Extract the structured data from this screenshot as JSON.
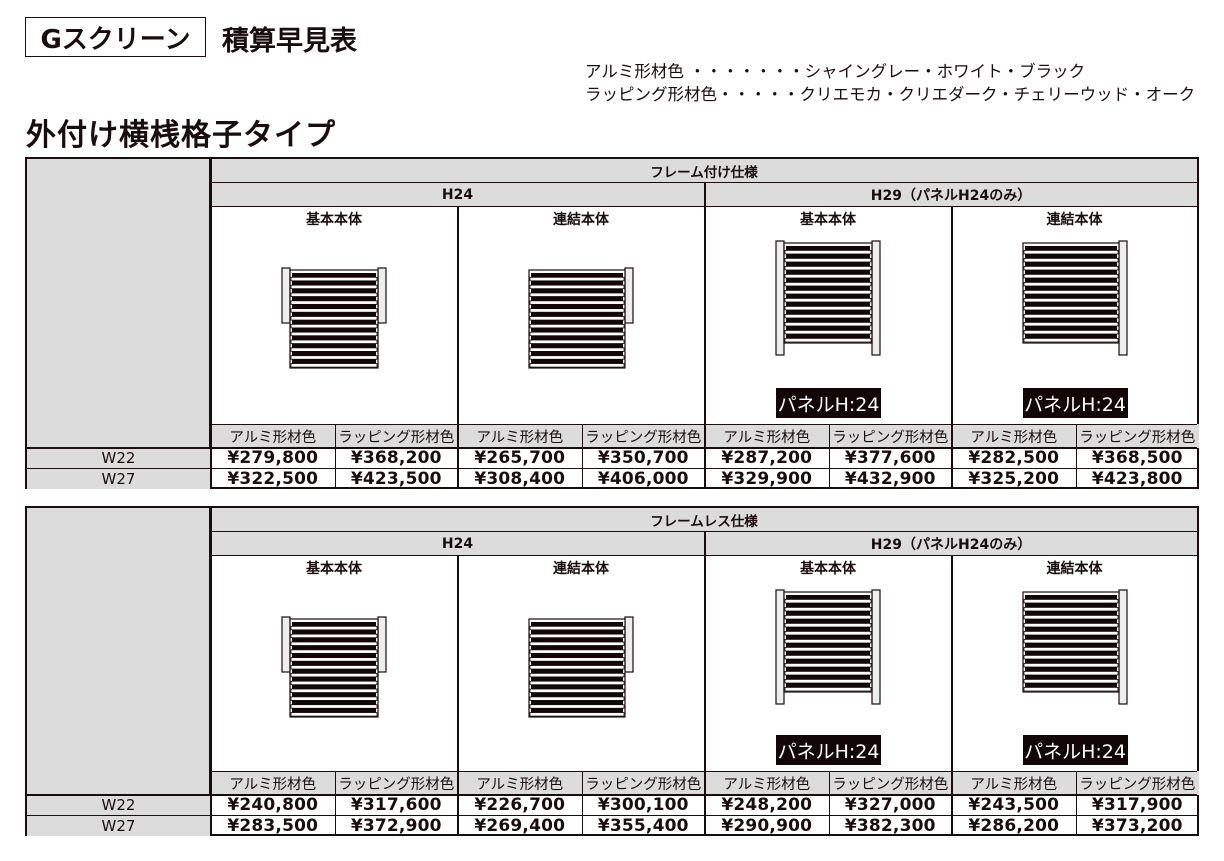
{
  "header": {
    "brand": "Gスクリーン",
    "title": "積算早見表"
  },
  "legend": {
    "alumi": "アルミ形材色 ・・・・・・・シャイングレー・ホワイト・ブラック",
    "wrapping": "ラッピング形材色・・・・・クリエモカ・クリエダーク・チェリーウッド・オーク"
  },
  "section_title": "外付け横桟格子タイプ",
  "colors": {
    "header_gray": "#dcdcdc",
    "line": "#1a0d0d",
    "badge_bg": "#120606"
  },
  "tables": [
    {
      "spec": "フレーム付け仕様",
      "groups": [
        {
          "label": "H24",
          "blocks": [
            {
              "name": "基本本体"
            },
            {
              "name": "連結本体"
            }
          ]
        },
        {
          "label": "H29（パネルH24のみ）",
          "blocks": [
            {
              "name": "基本本体",
              "badge": "パネルH:24"
            },
            {
              "name": "連結本体",
              "badge": "パネルH:24"
            }
          ]
        }
      ],
      "color_headers": [
        "アルミ形材色",
        "ラッピング形材色",
        "アルミ形材色",
        "ラッピング形材色",
        "アルミ形材色",
        "ラッピング形材色",
        "アルミ形材色",
        "ラッピング形材色"
      ],
      "rows": [
        {
          "label": "W22",
          "prices": [
            "¥279,800",
            "¥368,200",
            "¥265,700",
            "¥350,700",
            "¥287,200",
            "¥377,600",
            "¥282,500",
            "¥368,500"
          ]
        },
        {
          "label": "W27",
          "prices": [
            "¥322,500",
            "¥423,500",
            "¥308,400",
            "¥406,000",
            "¥329,900",
            "¥432,900",
            "¥325,200",
            "¥423,800"
          ]
        }
      ]
    },
    {
      "spec": "フレームレス仕様",
      "groups": [
        {
          "label": "H24",
          "blocks": [
            {
              "name": "基本本体"
            },
            {
              "name": "連結本体"
            }
          ]
        },
        {
          "label": "H29（パネルH24のみ）",
          "blocks": [
            {
              "name": "基本本体",
              "badge": "パネルH:24"
            },
            {
              "name": "連結本体",
              "badge": "パネルH:24"
            }
          ]
        }
      ],
      "color_headers": [
        "アルミ形材色",
        "ラッピング形材色",
        "アルミ形材色",
        "ラッピング形材色",
        "アルミ形材色",
        "ラッピング形材色",
        "アルミ形材色",
        "ラッピング形材色"
      ],
      "rows": [
        {
          "label": "W22",
          "prices": [
            "¥240,800",
            "¥317,600",
            "¥226,700",
            "¥300,100",
            "¥248,200",
            "¥327,000",
            "¥243,500",
            "¥317,900"
          ]
        },
        {
          "label": "W27",
          "prices": [
            "¥283,500",
            "¥372,900",
            "¥269,400",
            "¥355,400",
            "¥290,900",
            "¥382,300",
            "¥286,200",
            "¥373,200"
          ]
        }
      ]
    }
  ]
}
